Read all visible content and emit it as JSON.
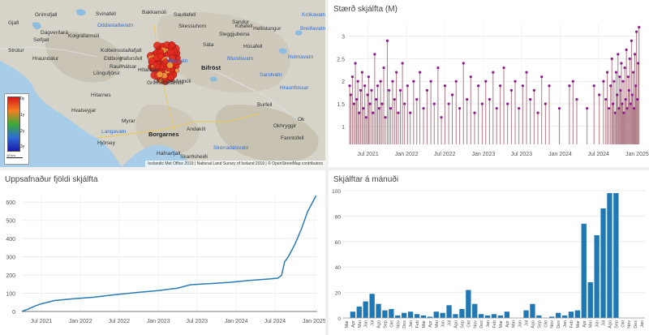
{
  "map": {
    "attribution": "Icelandic Met Office 2019 | National Land Survey of Iceland 2019 | © OpenStreetMap contributors",
    "scale_label": "10 km",
    "legend_ticks": [
      "0y",
      "1y",
      "2y",
      "3y"
    ],
    "towns": [
      {
        "name": "Borgarnes"
      },
      {
        "name": "Bifröst"
      }
    ],
    "places": [
      {
        "name": "Grímsstaðamúli"
      },
      {
        "name": "Svínafell"
      },
      {
        "name": "Bakkamúli"
      },
      {
        "name": "Sauðafell"
      },
      {
        "name": "Sandur"
      },
      {
        "name": "Hellistungur"
      },
      {
        "name": "Oddastaðavatn",
        "water": true
      },
      {
        "name": "Krókavatn",
        "water": true
      },
      {
        "name": "Breiðavatn",
        "water": true
      },
      {
        "name": "Hítarvatn",
        "water": true
      },
      {
        "name": "Kolbeinsstaðafjall"
      },
      {
        "name": "Hafursfell"
      },
      {
        "name": "Rauðhálsar"
      },
      {
        "name": "Eldborg"
      },
      {
        "name": "Löngufjörur"
      },
      {
        "name": "Hítardalur"
      },
      {
        "name": "Grímsstaðamúli"
      },
      {
        "name": "Hafnarfjall"
      },
      {
        "name": "Skarðsheiði"
      },
      {
        "name": "Andakíll"
      },
      {
        "name": "Myrar"
      },
      {
        "name": "Hvalseyjar"
      },
      {
        "name": "Hjörsey"
      },
      {
        "name": "Hítarnes"
      },
      {
        "name": "Grímsfjall"
      },
      {
        "name": "Gjafi"
      },
      {
        "name": "Kolgrafarmúli"
      },
      {
        "name": "Selfjall"
      },
      {
        "name": "Sáta"
      },
      {
        "name": "Holmavatn",
        "water": true
      },
      {
        "name": "Burfell"
      },
      {
        "name": "Hraunfossar",
        "water": true
      },
      {
        "name": "Okhryggir"
      },
      {
        "name": "Ok"
      },
      {
        "name": "Fanntófell"
      },
      {
        "name": "Skorradalsvatn",
        "water": true
      },
      {
        "name": "Kiðafell"
      },
      {
        "name": "Langavatn",
        "water": true
      },
      {
        "name": "Strútur"
      },
      {
        "name": "Dagverðará"
      },
      {
        "name": "Sleggjubeina"
      },
      {
        "name": "Húsafell"
      },
      {
        "name": "Hraundalur"
      },
      {
        "name": "Blundsvatn",
        "water": true
      },
      {
        "name": "Sandvatn",
        "water": true
      },
      {
        "name": "Skessuhorn"
      }
    ],
    "colors": {
      "sea": "#a7cde8",
      "land": "#d9d6cc",
      "quake": "#e52a1f"
    }
  },
  "charts": {
    "magnitude": {
      "title": "Stærð skjálfta (M)",
      "x_ticks": [
        "Jul 2021",
        "Jan 2022",
        "Jul 2022",
        "Jan 2023",
        "Jul 2023",
        "Jan 2024",
        "Jul 2024",
        "Jan 2025"
      ],
      "y_ticks": [
        "1",
        "1.5",
        "2",
        "2.5",
        "3"
      ]
    },
    "cumulative": {
      "title": "Uppsafnaður fjöldi skjálfta",
      "x_ticks": [
        "Jul 2021",
        "Jan 2022",
        "Jul 2022",
        "Jan 2023",
        "Jul 2023",
        "Jan 2024",
        "Jul 2024",
        "Jan 2025"
      ],
      "y_ticks": [
        "0",
        "100",
        "200",
        "300",
        "400",
        "500",
        "600"
      ]
    },
    "monthly": {
      "title": "Skjálftar á mánuði",
      "y_ticks": [
        "0",
        "20",
        "40",
        "60",
        "80",
        "100"
      ]
    }
  },
  "chart_data": [
    {
      "type": "scatter",
      "title": "Stærð skjálfta (M)",
      "xlabel": "",
      "ylabel": "",
      "ylim": [
        0.6,
        3.3
      ],
      "x_range": [
        "2021-04-01",
        "2025-01-15"
      ],
      "color": "#8b1a8b",
      "stem_color": "#b07b86",
      "points": [
        [
          "2021-04-05",
          1.9
        ],
        [
          "2021-04-10",
          1.7
        ],
        [
          "2021-04-18",
          2.1
        ],
        [
          "2021-04-25",
          1.5
        ],
        [
          "2021-05-02",
          2.4
        ],
        [
          "2021-05-08",
          1.6
        ],
        [
          "2021-05-14",
          2.0
        ],
        [
          "2021-05-20",
          1.3
        ],
        [
          "2021-05-27",
          1.8
        ],
        [
          "2021-06-03",
          2.2
        ],
        [
          "2021-06-09",
          1.4
        ],
        [
          "2021-06-16",
          1.9
        ],
        [
          "2021-06-22",
          1.2
        ],
        [
          "2021-06-29",
          1.7
        ],
        [
          "2021-07-04",
          2.1
        ],
        [
          "2021-07-10",
          1.5
        ],
        [
          "2021-07-18",
          1.8
        ],
        [
          "2021-07-25",
          1.3
        ],
        [
          "2021-08-02",
          2.6
        ],
        [
          "2021-08-09",
          1.6
        ],
        [
          "2021-08-16",
          1.9
        ],
        [
          "2021-08-23",
          1.4
        ],
        [
          "2021-08-30",
          2.0
        ],
        [
          "2021-09-06",
          1.5
        ],
        [
          "2021-09-14",
          2.3
        ],
        [
          "2021-09-22",
          1.2
        ],
        [
          "2021-10-01",
          2.9
        ],
        [
          "2021-10-09",
          1.8
        ],
        [
          "2021-10-17",
          1.4
        ],
        [
          "2021-10-26",
          2.0
        ],
        [
          "2021-11-04",
          1.6
        ],
        [
          "2021-11-13",
          2.2
        ],
        [
          "2021-11-22",
          1.3
        ],
        [
          "2021-12-02",
          1.8
        ],
        [
          "2021-12-12",
          2.4
        ],
        [
          "2021-12-22",
          1.5
        ],
        [
          "2022-01-05",
          1.9
        ],
        [
          "2022-01-18",
          1.3
        ],
        [
          "2022-02-03",
          2.0
        ],
        [
          "2022-02-18",
          1.6
        ],
        [
          "2022-03-05",
          2.2
        ],
        [
          "2022-03-22",
          1.4
        ],
        [
          "2022-04-08",
          1.8
        ],
        [
          "2022-04-26",
          2.0
        ],
        [
          "2022-05-12",
          1.5
        ],
        [
          "2022-05-30",
          2.3
        ],
        [
          "2022-06-15",
          1.2
        ],
        [
          "2022-07-02",
          1.9
        ],
        [
          "2022-07-20",
          1.5
        ],
        [
          "2022-08-06",
          1.7
        ],
        [
          "2022-08-24",
          2.0
        ],
        [
          "2022-09-10",
          1.4
        ],
        [
          "2022-09-28",
          2.4
        ],
        [
          "2022-10-15",
          1.6
        ],
        [
          "2022-11-02",
          2.1
        ],
        [
          "2022-11-20",
          1.3
        ],
        [
          "2022-12-08",
          1.9
        ],
        [
          "2022-12-26",
          1.5
        ],
        [
          "2023-01-12",
          2.0
        ],
        [
          "2023-01-30",
          1.6
        ],
        [
          "2023-02-16",
          2.2
        ],
        [
          "2023-03-05",
          1.4
        ],
        [
          "2023-03-22",
          1.9
        ],
        [
          "2023-04-08",
          2.3
        ],
        [
          "2023-04-26",
          1.5
        ],
        [
          "2023-05-14",
          1.8
        ],
        [
          "2023-06-01",
          2.0
        ],
        [
          "2023-06-19",
          1.4
        ],
        [
          "2023-07-07",
          1.9
        ],
        [
          "2023-07-25",
          2.2
        ],
        [
          "2023-08-12",
          1.6
        ],
        [
          "2023-08-30",
          1.8
        ],
        [
          "2023-09-17",
          1.3
        ],
        [
          "2023-10-05",
          2.1
        ],
        [
          "2023-10-23",
          1.5
        ],
        [
          "2023-11-10",
          1.9
        ],
        [
          "2023-12-28",
          1.4
        ],
        [
          "2024-02-14",
          1.9
        ],
        [
          "2024-03-02",
          2.0
        ],
        [
          "2024-03-20",
          1.6
        ],
        [
          "2024-05-08",
          1.4
        ],
        [
          "2024-06-10",
          1.9
        ],
        [
          "2024-07-05",
          1.7
        ],
        [
          "2024-07-25",
          2.0
        ],
        [
          "2024-08-05",
          1.6
        ],
        [
          "2024-08-12",
          2.2
        ],
        [
          "2024-08-20",
          1.4
        ],
        [
          "2024-08-28",
          1.9
        ],
        [
          "2024-09-03",
          2.5
        ],
        [
          "2024-09-08",
          1.5
        ],
        [
          "2024-09-13",
          2.0
        ],
        [
          "2024-09-18",
          1.3
        ],
        [
          "2024-09-23",
          2.2
        ],
        [
          "2024-09-28",
          1.7
        ],
        [
          "2024-10-02",
          2.6
        ],
        [
          "2024-10-06",
          1.4
        ],
        [
          "2024-10-10",
          2.1
        ],
        [
          "2024-10-14",
          1.8
        ],
        [
          "2024-10-18",
          2.4
        ],
        [
          "2024-10-22",
          1.5
        ],
        [
          "2024-10-26",
          2.0
        ],
        [
          "2024-10-30",
          1.3
        ],
        [
          "2024-11-03",
          2.3
        ],
        [
          "2024-11-07",
          1.6
        ],
        [
          "2024-11-11",
          2.7
        ],
        [
          "2024-11-15",
          1.4
        ],
        [
          "2024-11-19",
          2.1
        ],
        [
          "2024-11-23",
          1.8
        ],
        [
          "2024-11-27",
          2.5
        ],
        [
          "2024-12-01",
          1.5
        ],
        [
          "2024-12-05",
          2.9
        ],
        [
          "2024-12-09",
          1.7
        ],
        [
          "2024-12-13",
          2.2
        ],
        [
          "2024-12-17",
          1.4
        ],
        [
          "2024-12-21",
          2.6
        ],
        [
          "2024-12-25",
          1.9
        ],
        [
          "2024-12-29",
          3.1
        ],
        [
          "2025-01-02",
          1.6
        ],
        [
          "2025-01-06",
          2.4
        ],
        [
          "2025-01-10",
          3.2
        ]
      ]
    },
    {
      "type": "line",
      "title": "Uppsafnaður fjöldi skjálfta",
      "xlabel": "",
      "ylabel": "",
      "ylim": [
        0,
        650
      ],
      "x_range": [
        "2021-04-01",
        "2025-01-15"
      ],
      "color": "#2a7ab5",
      "points": [
        [
          "2021-04-01",
          0
        ],
        [
          "2021-05-01",
          14
        ],
        [
          "2021-06-01",
          30
        ],
        [
          "2021-07-01",
          42
        ],
        [
          "2021-09-01",
          60
        ],
        [
          "2021-12-01",
          70
        ],
        [
          "2022-03-01",
          78
        ],
        [
          "2022-07-01",
          95
        ],
        [
          "2022-10-01",
          105
        ],
        [
          "2023-01-01",
          115
        ],
        [
          "2023-04-01",
          128
        ],
        [
          "2023-06-01",
          147
        ],
        [
          "2023-09-01",
          153
        ],
        [
          "2023-12-01",
          160
        ],
        [
          "2024-03-01",
          170
        ],
        [
          "2024-06-01",
          178
        ],
        [
          "2024-07-15",
          183
        ],
        [
          "2024-08-01",
          198
        ],
        [
          "2024-08-15",
          272
        ],
        [
          "2024-09-01",
          300
        ],
        [
          "2024-10-01",
          365
        ],
        [
          "2024-11-01",
          450
        ],
        [
          "2024-12-01",
          548
        ],
        [
          "2025-01-10",
          636
        ]
      ]
    },
    {
      "type": "bar",
      "title": "Skjálftar á mánuði",
      "xlabel": "",
      "ylabel": "",
      "ylim": [
        0,
        100
      ],
      "color": "#1f77b4",
      "categories": [
        "Mar",
        "Apr",
        "Maí",
        "Jún",
        "Júl",
        "Ágú",
        "Sep",
        "Okt",
        "Nóv",
        "Des",
        "Jan",
        "Feb",
        "Mar",
        "Apr",
        "Maí",
        "Jún",
        "Júl",
        "Ágú",
        "Sep",
        "Okt",
        "Nóv",
        "Des",
        "Jan",
        "Feb",
        "Mar",
        "Apr",
        "Maí",
        "Jún",
        "Júl",
        "Ágú",
        "Sep",
        "Okt",
        "Nóv",
        "Des",
        "Jan",
        "Feb",
        "Mar",
        "Apr",
        "Maí",
        "Jún",
        "Júl",
        "Ágú",
        "Sep",
        "Okt",
        "Nóv",
        "Des",
        "Jan"
      ],
      "values": [
        0,
        5,
        9,
        13,
        19,
        11,
        6,
        7,
        2,
        4,
        5,
        3,
        2,
        1,
        5,
        4,
        10,
        3,
        7,
        22,
        11,
        3,
        2,
        3,
        2,
        5,
        0,
        0,
        6,
        11,
        2,
        0,
        1,
        4,
        2,
        5,
        6,
        74,
        28,
        65,
        86,
        98,
        98,
        0,
        0,
        0,
        0
      ]
    }
  ]
}
